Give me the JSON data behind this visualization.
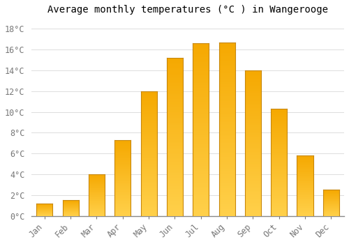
{
  "months": [
    "Jan",
    "Feb",
    "Mar",
    "Apr",
    "May",
    "Jun",
    "Jul",
    "Aug",
    "Sep",
    "Oct",
    "Nov",
    "Dec"
  ],
  "temperatures": [
    1.2,
    1.5,
    4.0,
    7.3,
    12.0,
    15.2,
    16.6,
    16.7,
    14.0,
    10.3,
    5.8,
    2.5
  ],
  "title": "Average monthly temperatures (°C ) in Wangerooge",
  "ylabel_ticks": [
    "0°C",
    "2°C",
    "4°C",
    "6°C",
    "8°C",
    "10°C",
    "12°C",
    "14°C",
    "16°C",
    "18°C"
  ],
  "ytick_vals": [
    0,
    2,
    4,
    6,
    8,
    10,
    12,
    14,
    16,
    18
  ],
  "ylim": [
    0,
    19
  ],
  "bar_color_bottom": "#FFD04A",
  "bar_color_top": "#F5A800",
  "bar_edge_color": "#C8870A",
  "background_color": "#FFFFFF",
  "grid_color": "#DDDDDD",
  "title_fontsize": 10,
  "tick_fontsize": 8.5,
  "font_family": "monospace"
}
